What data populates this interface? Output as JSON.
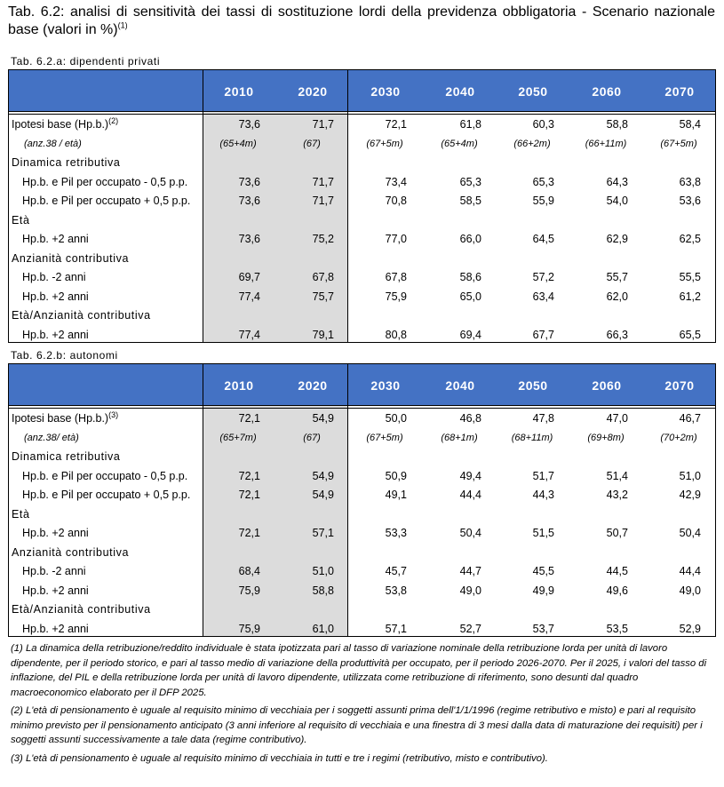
{
  "title": "Tab. 6.2: analisi di sensitività dei tassi di sostituzione lordi della previdenza obbligatoria - Scenario nazionale base (valori in %)",
  "title_note": "(1)",
  "years": [
    "2010",
    "2020",
    "2030",
    "2040",
    "2050",
    "2060",
    "2070"
  ],
  "tables": [
    {
      "subtitle": "Tab. 6.2.a: dipendenti privati",
      "rows": [
        {
          "label": "Ipotesi base (Hp.b.)",
          "sup": "(2)",
          "kind": "base",
          "values": [
            "73,6",
            "71,7",
            "72,1",
            "61,8",
            "60,3",
            "58,8",
            "58,4"
          ]
        },
        {
          "label": "(anz.38 / età)",
          "kind": "italic",
          "values": [
            "(65+4m)",
            "(67)",
            "(67+5m)",
            "(65+4m)",
            "(66+2m)",
            "(66+11m)",
            "(67+5m)"
          ]
        },
        {
          "label": "Dinamica retributiva",
          "kind": "section",
          "values": []
        },
        {
          "label": "Hp.b. e Pil per occupato - 0,5 p.p.",
          "kind": "sub",
          "values": [
            "73,6",
            "71,7",
            "73,4",
            "65,3",
            "65,3",
            "64,3",
            "63,8"
          ]
        },
        {
          "label": "Hp.b. e Pil per occupato + 0,5 p.p.",
          "kind": "sub",
          "values": [
            "73,6",
            "71,7",
            "70,8",
            "58,5",
            "55,9",
            "54,0",
            "53,6"
          ]
        },
        {
          "label": "Età",
          "kind": "section",
          "values": []
        },
        {
          "label": "Hp.b. +2 anni",
          "kind": "sub",
          "values": [
            "73,6",
            "75,2",
            "77,0",
            "66,0",
            "64,5",
            "62,9",
            "62,5"
          ]
        },
        {
          "label": "Anzianità contributiva",
          "kind": "section",
          "values": []
        },
        {
          "label": "Hp.b. -2 anni",
          "kind": "sub",
          "values": [
            "69,7",
            "67,8",
            "67,8",
            "58,6",
            "57,2",
            "55,7",
            "55,5"
          ]
        },
        {
          "label": "Hp.b. +2 anni",
          "kind": "sub",
          "values": [
            "77,4",
            "75,7",
            "75,9",
            "65,0",
            "63,4",
            "62,0",
            "61,2"
          ]
        },
        {
          "label": "Età/Anzianità contributiva",
          "kind": "section",
          "values": []
        },
        {
          "label": "Hp.b. +2 anni",
          "kind": "sub",
          "values": [
            "77,4",
            "79,1",
            "80,8",
            "69,4",
            "67,7",
            "66,3",
            "65,5"
          ]
        }
      ]
    },
    {
      "subtitle": "Tab. 6.2.b: autonomi",
      "rows": [
        {
          "label": "Ipotesi base (Hp.b.)",
          "sup": "(3)",
          "kind": "base",
          "values": [
            "72,1",
            "54,9",
            "50,0",
            "46,8",
            "47,8",
            "47,0",
            "46,7"
          ]
        },
        {
          "label": "(anz.38/ età)",
          "kind": "italic",
          "values": [
            "(65+7m)",
            "(67)",
            "(67+5m)",
            "(68+1m)",
            "(68+11m)",
            "(69+8m)",
            "(70+2m)"
          ]
        },
        {
          "label": "Dinamica retributiva",
          "kind": "section",
          "values": []
        },
        {
          "label": "Hp.b. e Pil per occupato - 0,5 p.p.",
          "kind": "sub",
          "values": [
            "72,1",
            "54,9",
            "50,9",
            "49,4",
            "51,7",
            "51,4",
            "51,0"
          ]
        },
        {
          "label": "Hp.b. e Pil per occupato + 0,5 p.p.",
          "kind": "sub",
          "values": [
            "72,1",
            "54,9",
            "49,1",
            "44,4",
            "44,3",
            "43,2",
            "42,9"
          ]
        },
        {
          "label": "Età",
          "kind": "section",
          "values": []
        },
        {
          "label": "Hp.b. +2 anni",
          "kind": "sub",
          "values": [
            "72,1",
            "57,1",
            "53,3",
            "50,4",
            "51,5",
            "50,7",
            "50,4"
          ]
        },
        {
          "label": "Anzianità contributiva",
          "kind": "section",
          "values": []
        },
        {
          "label": "Hp.b. -2 anni",
          "kind": "sub",
          "values": [
            "68,4",
            "51,0",
            "45,7",
            "44,7",
            "45,5",
            "44,5",
            "44,4"
          ]
        },
        {
          "label": "Hp.b. +2 anni",
          "kind": "sub",
          "values": [
            "75,9",
            "58,8",
            "53,8",
            "49,0",
            "49,9",
            "49,6",
            "49,0"
          ]
        },
        {
          "label": "Età/Anzianità contributiva",
          "kind": "section",
          "values": []
        },
        {
          "label": "Hp.b. +2 anni",
          "kind": "sub",
          "values": [
            "75,9",
            "61,0",
            "57,1",
            "52,7",
            "53,7",
            "53,5",
            "52,9"
          ]
        }
      ]
    }
  ],
  "notes": [
    "(1) La dinamica della retribuzione/reddito individuale è stata ipotizzata pari al tasso di variazione nominale della retribuzione lorda per unità di lavoro dipendente, per il periodo storico, e pari al tasso medio di variazione della produttività per occupato, per il periodo 2026-2070. Per il 2025, i valori del tasso di inflazione, del PIL e della retribuzione lorda per unità di lavoro dipendente, utilizzata come retribuzione di riferimento, sono desunti dal quadro macroeconomico elaborato per il DFP 2025.",
    "(2) L'età di pensionamento è uguale al requisito minimo di vecchiaia per i soggetti assunti prima dell'1/1/1996 (regime retributivo e misto) e pari al requisito minimo previsto per il pensionamento anticipato (3 anni inferiore al requisito di vecchiaia e una finestra di 3 mesi dalla data di maturazione dei requisiti) per i soggetti assunti successivamente a tale data (regime contributivo).",
    "(3) L'età di pensionamento è uguale al requisito minimo di vecchiaia in tutti e tre i regimi (retributivo, misto e contributivo)."
  ]
}
